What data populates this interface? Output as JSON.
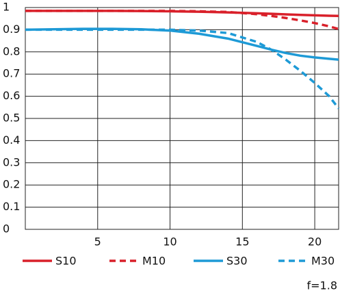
{
  "chart_data": {
    "type": "line",
    "x": [
      0,
      2,
      4,
      6,
      8,
      10,
      12,
      14,
      16,
      17,
      18,
      19,
      20,
      21,
      21.65
    ],
    "series": [
      {
        "name": "S10",
        "color": "#d9202a",
        "dash": false,
        "values": [
          0.985,
          0.985,
          0.985,
          0.985,
          0.984,
          0.983,
          0.981,
          0.978,
          0.974,
          0.972,
          0.969,
          0.967,
          0.965,
          0.963,
          0.962
        ]
      },
      {
        "name": "M10",
        "color": "#d9202a",
        "dash": true,
        "values": [
          0.985,
          0.985,
          0.985,
          0.985,
          0.985,
          0.985,
          0.983,
          0.98,
          0.97,
          0.962,
          0.953,
          0.942,
          0.93,
          0.915,
          0.903
        ]
      },
      {
        "name": "S30",
        "color": "#1e9ad6",
        "dash": false,
        "values": [
          0.9,
          0.902,
          0.904,
          0.904,
          0.902,
          0.896,
          0.882,
          0.86,
          0.827,
          0.81,
          0.795,
          0.783,
          0.775,
          0.769,
          0.765
        ]
      },
      {
        "name": "M30",
        "color": "#1e9ad6",
        "dash": true,
        "values": [
          0.9,
          0.9,
          0.9,
          0.9,
          0.9,
          0.9,
          0.896,
          0.885,
          0.845,
          0.81,
          0.765,
          0.715,
          0.66,
          0.6,
          0.545
        ]
      }
    ],
    "xlim": [
      0,
      21.65
    ],
    "xticks": [
      5,
      10,
      15,
      20
    ],
    "ylim": [
      0,
      1
    ],
    "yticks": [
      0,
      0.1,
      0.2,
      0.3,
      0.4,
      0.5,
      0.6,
      0.7,
      0.8,
      0.9,
      1
    ],
    "grid": true,
    "annotation": "f=1.8"
  }
}
